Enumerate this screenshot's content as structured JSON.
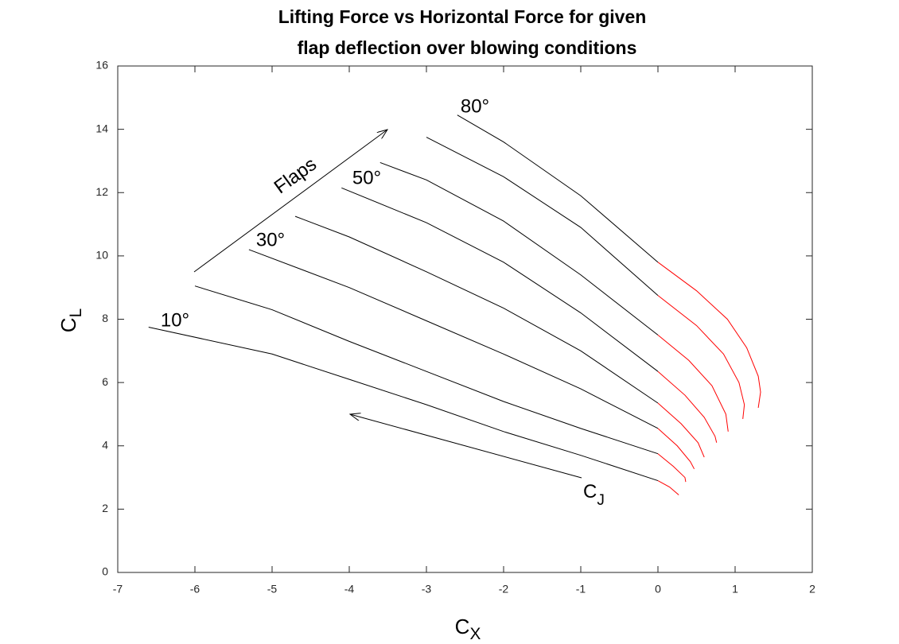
{
  "chart_data": {
    "type": "line",
    "title": [
      "Lifting Force vs Horizontal Force for given",
      "flap deflection over blowing conditions"
    ],
    "xlabel": {
      "text": "C",
      "subscript": "X"
    },
    "ylabel": {
      "text": "C",
      "subscript": "L"
    },
    "xlim": [
      -7,
      2
    ],
    "xticks": [
      -7,
      -6,
      -5,
      -4,
      -3,
      -2,
      -1,
      0,
      1,
      2
    ],
    "ylim": [
      0,
      16
    ],
    "yticks": [
      0,
      2,
      4,
      6,
      8,
      10,
      12,
      14,
      16
    ],
    "grid": false,
    "series": [
      {
        "color": "#000000",
        "x": [
          -6.6,
          -5,
          -4,
          -3,
          -2,
          -1,
          0
        ],
        "values": [
          7.75,
          6.9,
          6.1,
          5.3,
          4.45,
          3.7,
          2.9
        ]
      },
      {
        "color": "#ff0000",
        "x": [
          0,
          0.15,
          0.27
        ],
        "values": [
          2.9,
          2.7,
          2.45
        ]
      },
      {
        "color": "#000000",
        "x": [
          -6,
          -5,
          -4,
          -3,
          -2,
          -1,
          0
        ],
        "values": [
          9.05,
          8.3,
          7.3,
          6.35,
          5.4,
          4.55,
          3.75
        ]
      },
      {
        "color": "#ff0000",
        "x": [
          0,
          0.2,
          0.35,
          0.36
        ],
        "values": [
          3.75,
          3.35,
          3.0,
          2.86
        ]
      },
      {
        "color": "#000000",
        "x": [
          -5.3,
          -4,
          -3,
          -2,
          -1,
          0
        ],
        "values": [
          10.2,
          9.0,
          7.95,
          6.9,
          5.8,
          4.55
        ]
      },
      {
        "color": "#ff0000",
        "x": [
          0,
          0.25,
          0.42,
          0.47
        ],
        "values": [
          4.55,
          4.0,
          3.5,
          3.27
        ]
      },
      {
        "color": "#000000",
        "x": [
          -4.7,
          -4,
          -3,
          -2,
          -1,
          0
        ],
        "values": [
          11.25,
          10.6,
          9.5,
          8.35,
          7.0,
          5.35
        ]
      },
      {
        "color": "#ff0000",
        "x": [
          0,
          0.3,
          0.52,
          0.6
        ],
        "values": [
          5.35,
          4.7,
          4.1,
          3.64
        ]
      },
      {
        "color": "#000000",
        "x": [
          -4.1,
          -3,
          -2,
          -1,
          0
        ],
        "values": [
          12.15,
          11.05,
          9.8,
          8.2,
          6.35
        ]
      },
      {
        "color": "#ff0000",
        "x": [
          0,
          0.35,
          0.6,
          0.74,
          0.76
        ],
        "values": [
          6.35,
          5.6,
          4.9,
          4.3,
          4.1
        ]
      },
      {
        "color": "#000000",
        "x": [
          -3.6,
          -3,
          -2,
          -1,
          0
        ],
        "values": [
          12.95,
          12.4,
          11.1,
          9.4,
          7.5
        ]
      },
      {
        "color": "#ff0000",
        "x": [
          0,
          0.4,
          0.7,
          0.88,
          0.91
        ],
        "values": [
          7.5,
          6.7,
          5.9,
          5.0,
          4.45
        ]
      },
      {
        "color": "#000000",
        "x": [
          -3,
          -2,
          -1,
          0
        ],
        "values": [
          13.75,
          12.5,
          10.9,
          8.75
        ]
      },
      {
        "color": "#ff0000",
        "x": [
          0,
          0.5,
          0.85,
          1.05,
          1.12,
          1.1
        ],
        "values": [
          8.75,
          7.8,
          6.9,
          6.0,
          5.3,
          4.85
        ]
      },
      {
        "color": "#000000",
        "x": [
          -2.6,
          -2,
          -1,
          0
        ],
        "values": [
          14.45,
          13.6,
          11.9,
          9.8
        ]
      },
      {
        "color": "#ff0000",
        "x": [
          0,
          0.5,
          0.9,
          1.15,
          1.3,
          1.33,
          1.3
        ],
        "values": [
          9.8,
          8.9,
          8.0,
          7.1,
          6.2,
          5.7,
          5.2
        ]
      }
    ],
    "annotations": [
      {
        "text": "10°"
      },
      {
        "text": "30°"
      },
      {
        "text": "50°"
      },
      {
        "text": "80°"
      },
      {
        "text": "Flaps"
      },
      {
        "text": "C",
        "subscript": "J"
      }
    ]
  }
}
